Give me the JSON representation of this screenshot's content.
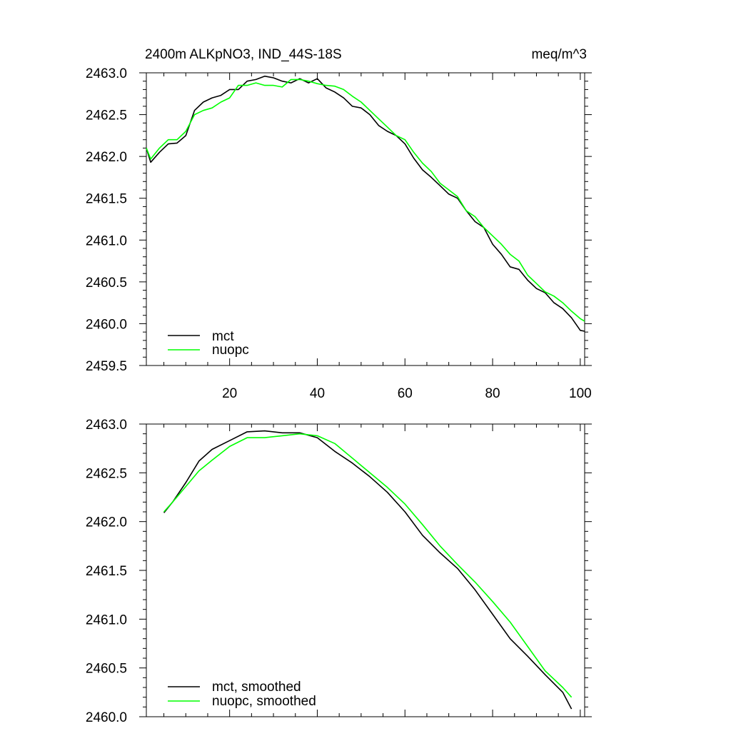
{
  "chart_data": [
    {
      "type": "line",
      "title": "2400m ALKpNO3, IND_44S-18S",
      "units": "meq/m^3",
      "xlim": [
        1,
        101
      ],
      "ylim": [
        2459.5,
        2463.0
      ],
      "x_ticks": [
        20,
        40,
        60,
        80,
        100
      ],
      "y_ticks": [
        2459.5,
        2460.0,
        2460.5,
        2461.0,
        2461.5,
        2462.0,
        2462.5,
        2463.0
      ],
      "y_tick_labels": [
        "2459.5",
        "2460.0",
        "2460.5",
        "2461.0",
        "2461.5",
        "2462.0",
        "2462.5",
        "2463.0"
      ],
      "x_tick_labels": [
        "20",
        "40",
        "60",
        "80",
        "100"
      ],
      "legend_position": "bottom-left",
      "series": [
        {
          "name": "mct",
          "color": "#000000",
          "points": [
            [
              1,
              2462.1
            ],
            [
              2,
              2461.93
            ],
            [
              4,
              2462.05
            ],
            [
              6,
              2462.15
            ],
            [
              8,
              2462.16
            ],
            [
              10,
              2462.25
            ],
            [
              12,
              2462.55
            ],
            [
              14,
              2462.65
            ],
            [
              16,
              2462.7
            ],
            [
              18,
              2462.73
            ],
            [
              20,
              2462.8
            ],
            [
              22,
              2462.8
            ],
            [
              24,
              2462.9
            ],
            [
              26,
              2462.92
            ],
            [
              28,
              2462.96
            ],
            [
              30,
              2462.94
            ],
            [
              32,
              2462.9
            ],
            [
              34,
              2462.88
            ],
            [
              36,
              2462.93
            ],
            [
              38,
              2462.88
            ],
            [
              40,
              2462.93
            ],
            [
              42,
              2462.82
            ],
            [
              44,
              2462.77
            ],
            [
              46,
              2462.7
            ],
            [
              48,
              2462.6
            ],
            [
              50,
              2462.58
            ],
            [
              52,
              2462.5
            ],
            [
              54,
              2462.37
            ],
            [
              56,
              2462.3
            ],
            [
              58,
              2462.25
            ],
            [
              60,
              2462.15
            ],
            [
              62,
              2461.98
            ],
            [
              64,
              2461.84
            ],
            [
              66,
              2461.75
            ],
            [
              68,
              2461.65
            ],
            [
              70,
              2461.55
            ],
            [
              72,
              2461.5
            ],
            [
              74,
              2461.35
            ],
            [
              76,
              2461.22
            ],
            [
              78,
              2461.15
            ],
            [
              80,
              2460.95
            ],
            [
              82,
              2460.83
            ],
            [
              84,
              2460.68
            ],
            [
              86,
              2460.65
            ],
            [
              88,
              2460.52
            ],
            [
              90,
              2460.42
            ],
            [
              92,
              2460.37
            ],
            [
              94,
              2460.25
            ],
            [
              96,
              2460.18
            ],
            [
              98,
              2460.07
            ],
            [
              100,
              2459.92
            ],
            [
              101,
              2459.91
            ]
          ]
        },
        {
          "name": "nuopc",
          "color": "#00ff00",
          "points": [
            [
              1,
              2462.1
            ],
            [
              2,
              2461.97
            ],
            [
              4,
              2462.1
            ],
            [
              6,
              2462.2
            ],
            [
              8,
              2462.2
            ],
            [
              10,
              2462.3
            ],
            [
              12,
              2462.5
            ],
            [
              14,
              2462.55
            ],
            [
              16,
              2462.58
            ],
            [
              18,
              2462.65
            ],
            [
              20,
              2462.7
            ],
            [
              22,
              2462.85
            ],
            [
              24,
              2462.85
            ],
            [
              26,
              2462.88
            ],
            [
              28,
              2462.85
            ],
            [
              30,
              2462.85
            ],
            [
              32,
              2462.83
            ],
            [
              34,
              2462.92
            ],
            [
              36,
              2462.92
            ],
            [
              38,
              2462.9
            ],
            [
              40,
              2462.87
            ],
            [
              42,
              2462.85
            ],
            [
              44,
              2462.84
            ],
            [
              46,
              2462.8
            ],
            [
              48,
              2462.72
            ],
            [
              50,
              2462.65
            ],
            [
              52,
              2462.55
            ],
            [
              54,
              2462.45
            ],
            [
              56,
              2462.35
            ],
            [
              58,
              2462.25
            ],
            [
              60,
              2462.2
            ],
            [
              62,
              2462.05
            ],
            [
              64,
              2461.92
            ],
            [
              66,
              2461.82
            ],
            [
              68,
              2461.68
            ],
            [
              70,
              2461.6
            ],
            [
              72,
              2461.52
            ],
            [
              74,
              2461.35
            ],
            [
              76,
              2461.28
            ],
            [
              78,
              2461.15
            ],
            [
              80,
              2461.05
            ],
            [
              82,
              2460.95
            ],
            [
              84,
              2460.83
            ],
            [
              86,
              2460.75
            ],
            [
              88,
              2460.58
            ],
            [
              90,
              2460.48
            ],
            [
              92,
              2460.38
            ],
            [
              94,
              2460.33
            ],
            [
              96,
              2460.25
            ],
            [
              98,
              2460.15
            ],
            [
              100,
              2460.06
            ],
            [
              101,
              2460.03
            ]
          ]
        }
      ]
    },
    {
      "type": "line",
      "title": "",
      "xlim": [
        1,
        101
      ],
      "ylim": [
        2460.0,
        2463.0
      ],
      "x_ticks": [
        20,
        40,
        60,
        80,
        100
      ],
      "y_ticks": [
        2460.0,
        2460.5,
        2461.0,
        2461.5,
        2462.0,
        2462.5,
        2463.0
      ],
      "y_tick_labels": [
        "2460.0",
        "2460.5",
        "2461.0",
        "2461.5",
        "2462.0",
        "2462.5",
        "2463.0"
      ],
      "legend_position": "bottom-left",
      "series": [
        {
          "name": "mct, smoothed",
          "color": "#000000",
          "points": [
            [
              5,
              2462.09
            ],
            [
              7,
              2462.2
            ],
            [
              10,
              2462.4
            ],
            [
              13,
              2462.62
            ],
            [
              16,
              2462.74
            ],
            [
              20,
              2462.83
            ],
            [
              24,
              2462.92
            ],
            [
              28,
              2462.93
            ],
            [
              32,
              2462.91
            ],
            [
              36,
              2462.91
            ],
            [
              40,
              2462.86
            ],
            [
              44,
              2462.72
            ],
            [
              48,
              2462.6
            ],
            [
              52,
              2462.46
            ],
            [
              56,
              2462.3
            ],
            [
              60,
              2462.1
            ],
            [
              64,
              2461.86
            ],
            [
              68,
              2461.68
            ],
            [
              72,
              2461.52
            ],
            [
              76,
              2461.3
            ],
            [
              80,
              2461.05
            ],
            [
              84,
              2460.8
            ],
            [
              88,
              2460.62
            ],
            [
              92,
              2460.43
            ],
            [
              96,
              2460.25
            ],
            [
              98,
              2460.08
            ]
          ]
        },
        {
          "name": "nuopc, smoothed",
          "color": "#00ff00",
          "points": [
            [
              5,
              2462.1
            ],
            [
              7,
              2462.2
            ],
            [
              10,
              2462.36
            ],
            [
              13,
              2462.52
            ],
            [
              16,
              2462.63
            ],
            [
              20,
              2462.77
            ],
            [
              24,
              2462.86
            ],
            [
              28,
              2462.86
            ],
            [
              32,
              2462.88
            ],
            [
              36,
              2462.9
            ],
            [
              40,
              2462.88
            ],
            [
              44,
              2462.8
            ],
            [
              48,
              2462.65
            ],
            [
              52,
              2462.5
            ],
            [
              56,
              2462.35
            ],
            [
              60,
              2462.18
            ],
            [
              64,
              2461.97
            ],
            [
              68,
              2461.75
            ],
            [
              72,
              2461.56
            ],
            [
              76,
              2461.38
            ],
            [
              80,
              2461.18
            ],
            [
              84,
              2460.97
            ],
            [
              88,
              2460.72
            ],
            [
              92,
              2460.47
            ],
            [
              96,
              2460.3
            ],
            [
              98,
              2460.2
            ]
          ]
        }
      ]
    }
  ]
}
